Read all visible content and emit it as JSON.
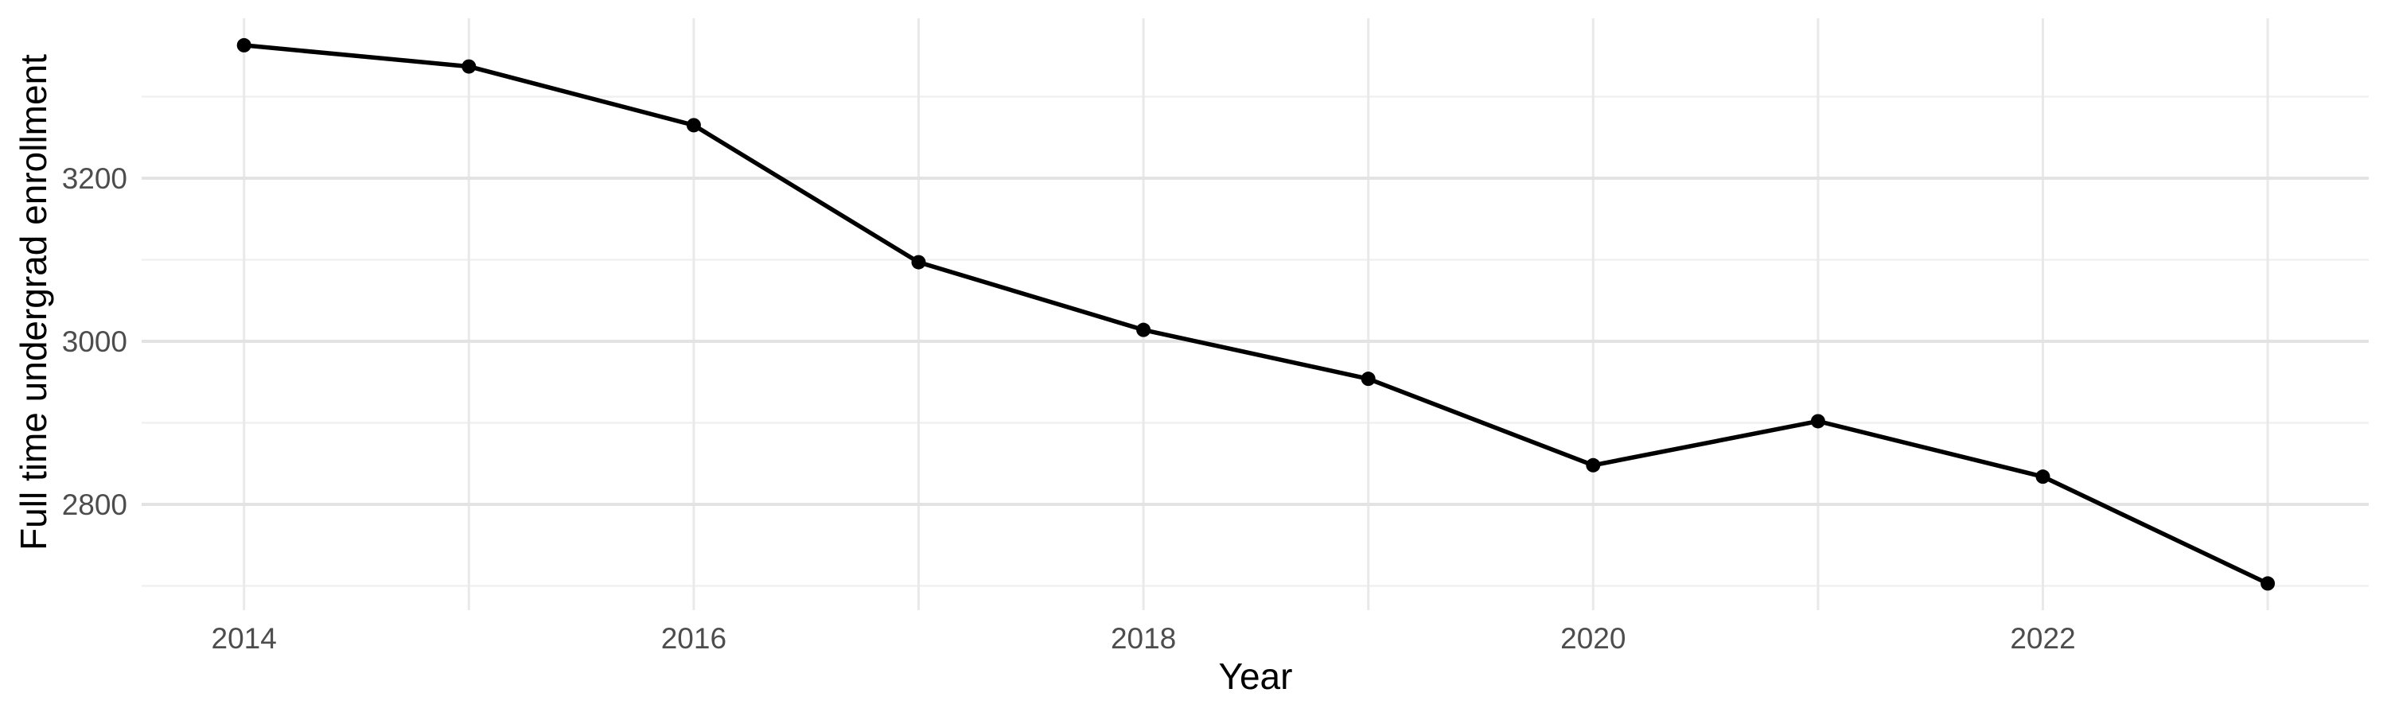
{
  "chart_data": {
    "type": "line",
    "title": "",
    "xlabel": "Year",
    "ylabel": "Full time undergrad enrollment",
    "x": [
      2014,
      2015,
      2016,
      2017,
      2018,
      2019,
      2020,
      2021,
      2022,
      2023
    ],
    "series": [
      {
        "name": "Full time undergrad enrollment",
        "values": [
          3363,
          3337,
          3265,
          3097,
          3014,
          2954,
          2848,
          2902,
          2834,
          2703
        ]
      }
    ],
    "x_tick_labels": [
      "2014",
      "2016",
      "2018",
      "2020",
      "2022"
    ],
    "x_ticks": [
      2014,
      2016,
      2018,
      2020,
      2022
    ],
    "y_tick_labels": [
      "2800",
      "3000",
      "3200"
    ],
    "y_ticks": [
      2800,
      3000,
      3200
    ],
    "y_minor_gridlines": [
      2700,
      2900,
      3100,
      3300
    ],
    "x_gridline_years": [
      2014,
      2015,
      2016,
      2017,
      2018,
      2019,
      2020,
      2021,
      2022,
      2023
    ],
    "xlim": [
      2013.55,
      2023.45
    ],
    "ylim": [
      2692,
      3420
    ],
    "grid": "horizontal major+minor, vertical at every year",
    "legend_position": "none",
    "marker": "filled-circle",
    "colors": {
      "line": "#000000",
      "point": "#000000",
      "grid_major": "#e3e3e3",
      "grid_minor": "#efefef",
      "grid_vertical": "#e9e9e9",
      "tick_label": "#4d4d4d",
      "axis_title": "#000000",
      "background": "#ffffff"
    }
  }
}
